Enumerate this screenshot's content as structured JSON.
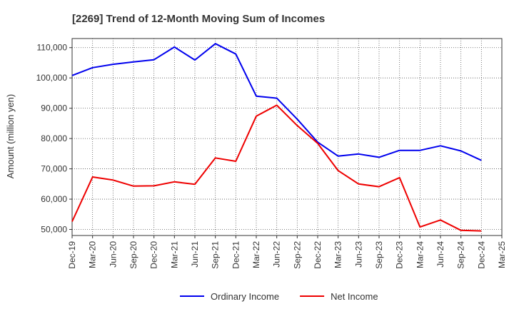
{
  "chart_data": {
    "type": "line",
    "title": "[2269]  Trend of 12-Month Moving Sum of Incomes",
    "xlabel": "",
    "ylabel": "Amount (million yen)",
    "ylim": [
      48000,
      113000
    ],
    "yticks": [
      50000,
      60000,
      70000,
      80000,
      90000,
      100000,
      110000
    ],
    "ytick_labels": [
      "50,000",
      "60,000",
      "70,000",
      "80,000",
      "90,000",
      "100,000",
      "110,000"
    ],
    "categories": [
      "Dec-19",
      "Mar-20",
      "Jun-20",
      "Sep-20",
      "Dec-20",
      "Mar-21",
      "Jun-21",
      "Sep-21",
      "Dec-21",
      "Mar-22",
      "Jun-22",
      "Sep-22",
      "Dec-22",
      "Mar-23",
      "Jun-23",
      "Sep-23",
      "Dec-23",
      "Mar-24",
      "Jun-24",
      "Sep-24",
      "Dec-24",
      "Mar-25"
    ],
    "grid": true,
    "legend_position": "bottom",
    "series": [
      {
        "name": "Ordinary Income",
        "color": "#0000ee",
        "values": [
          100800,
          103400,
          104500,
          105300,
          106000,
          110200,
          105900,
          111300,
          107900,
          94000,
          93300,
          86400,
          78800,
          74200,
          74900,
          73800,
          76100,
          76100,
          77600,
          75900,
          72800,
          null
        ]
      },
      {
        "name": "Net Income",
        "color": "#ee0000",
        "values": [
          52600,
          67300,
          66300,
          64300,
          64400,
          65700,
          64900,
          73600,
          72500,
          87400,
          91000,
          84300,
          78400,
          69400,
          65000,
          64100,
          67100,
          50800,
          53100,
          49700,
          49500,
          null
        ]
      }
    ]
  }
}
